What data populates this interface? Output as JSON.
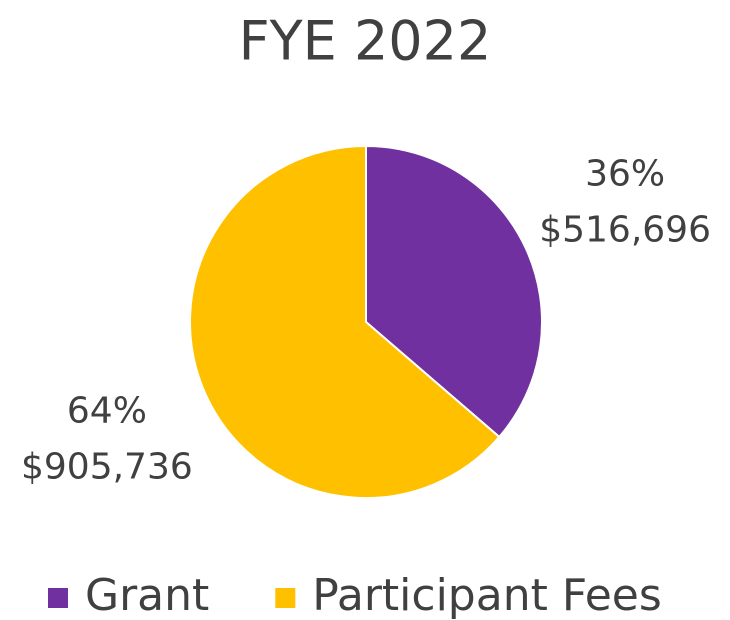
{
  "chart_data": {
    "type": "pie",
    "title": "FYE 2022",
    "categories": [
      "Grant",
      "Participant Fees"
    ],
    "values": [
      516696,
      905736
    ],
    "value_labels": [
      "$516,696",
      "$905,736"
    ],
    "percents": [
      36,
      64
    ],
    "percent_labels": [
      "36%",
      "64%"
    ],
    "colors": [
      "#7030a0",
      "#ffc000"
    ],
    "legend": "bottom"
  }
}
